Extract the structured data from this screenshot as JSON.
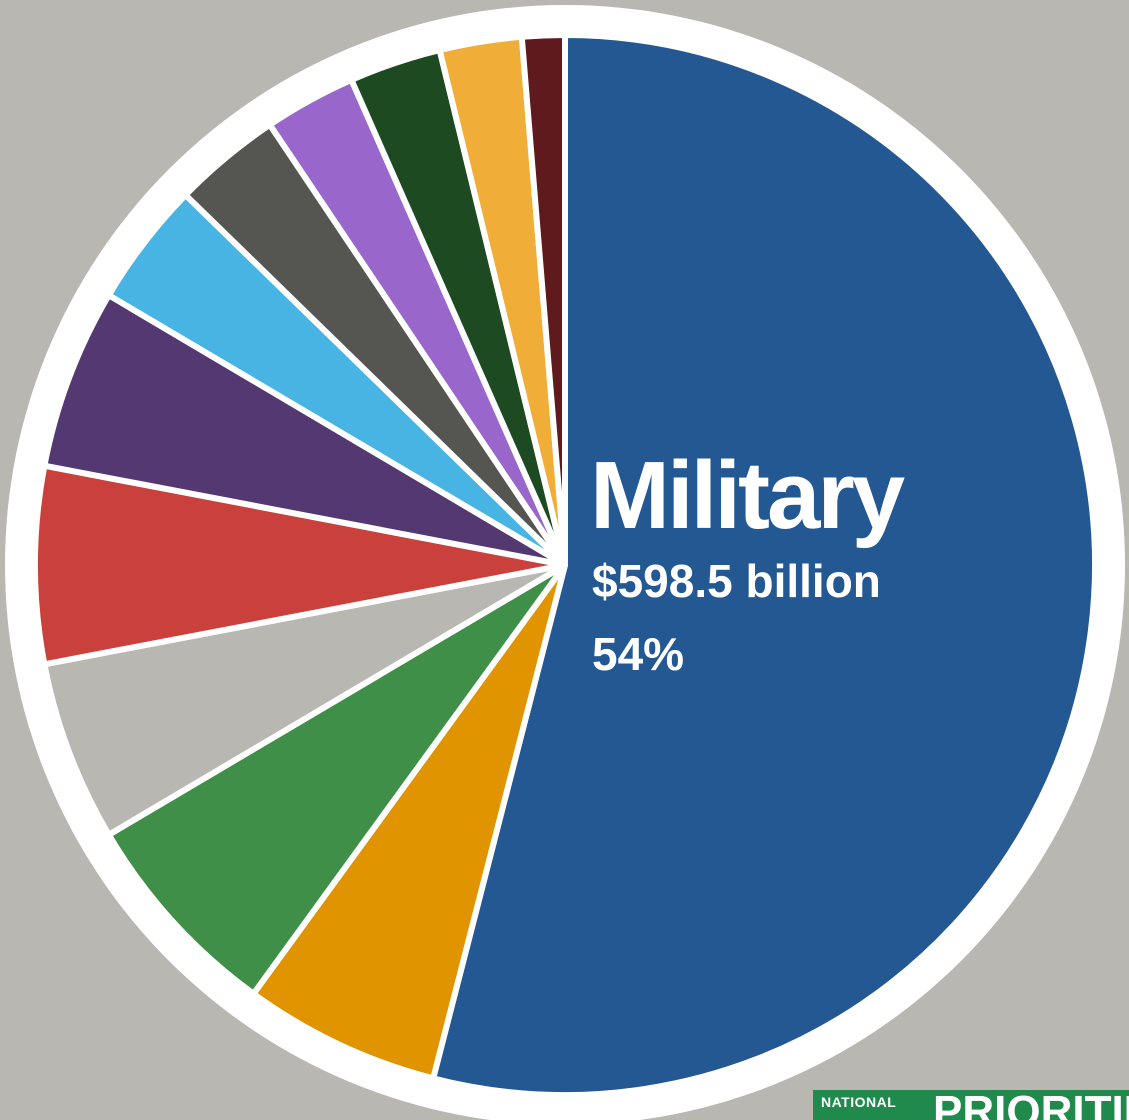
{
  "chart_data": {
    "type": "pie",
    "title": "",
    "slices": [
      {
        "label": "Military",
        "value": 54,
        "color": "#235892",
        "amount_label": "$598.5 billion",
        "percent_label": "54%"
      },
      {
        "label": "",
        "value": 6.0,
        "color": "#e09400"
      },
      {
        "label": "",
        "value": 6.5,
        "color": "#3f8f49"
      },
      {
        "label": "",
        "value": 5.5,
        "color": "#b8b7b2"
      },
      {
        "label": "",
        "value": 6.0,
        "color": "#c9403d"
      },
      {
        "label": "",
        "value": 5.5,
        "color": "#533872"
      },
      {
        "label": "",
        "value": 3.8,
        "color": "#48b4e4"
      },
      {
        "label": "",
        "value": 3.3,
        "color": "#555652"
      },
      {
        "label": "",
        "value": 2.8,
        "color": "#9966cc"
      },
      {
        "label": "",
        "value": 2.8,
        "color": "#1e4a22"
      },
      {
        "label": "",
        "value": 2.5,
        "color": "#f0ae38"
      },
      {
        "label": "",
        "value": 1.3,
        "color": "#5e1a1c"
      }
    ],
    "legend": "none"
  },
  "logo": {
    "small_text": "NATIONAL",
    "big_text": "PRIORITIES"
  }
}
